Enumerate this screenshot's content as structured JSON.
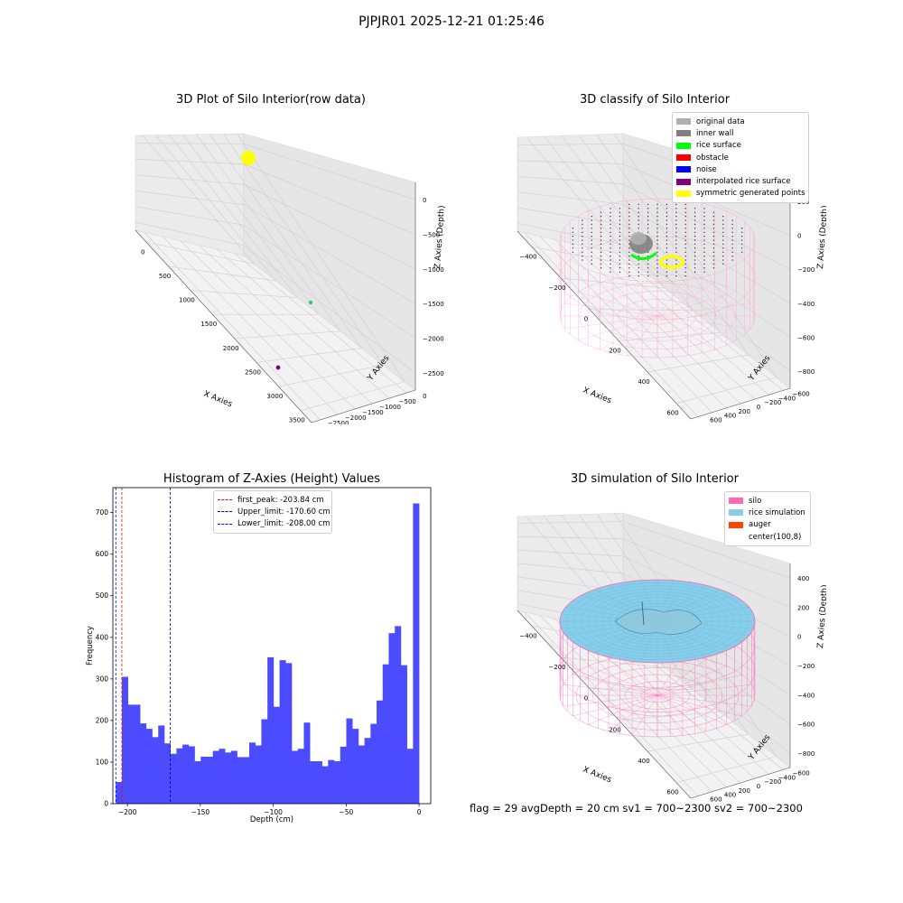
{
  "suptitle": "PJPJR01 2025-12-21 01:25:46",
  "footer": "flag = 29  avgDepth = 20 cm    sv1 = 700~2300  sv2 = 700~2300",
  "panels": {
    "raw": {
      "title": "3D Plot of Silo Interior(row data)",
      "xlabel": "X Axies",
      "ylabel": "Y Axies",
      "zlabel": "Z Axies (Depth)",
      "xticks": [
        "0",
        "500",
        "1000",
        "1500",
        "2000",
        "2500",
        "3000",
        "3500"
      ],
      "yticks": [
        "0",
        "−500",
        "−1000",
        "−1500",
        "−2000",
        "−2500"
      ],
      "zticks": [
        "0",
        "−500",
        "−1000",
        "−1500",
        "−2000",
        "−2500"
      ]
    },
    "classify": {
      "title": "3D classify of Silo Interior",
      "xlabel": "X Axies",
      "ylabel": "Y Axies",
      "zlabel": "Z Axies (Depth)",
      "xticks": [
        "−400",
        "−200",
        "0",
        "200",
        "400",
        "600"
      ],
      "yticks": [
        "−600",
        "−400",
        "−200",
        "0",
        "200",
        "400",
        "600"
      ],
      "zticks": [
        "200",
        "0",
        "−200",
        "−400",
        "−600",
        "−800"
      ],
      "zticks_hidden_top": "00",
      "legend": [
        {
          "label": "original data",
          "color": "#b0b0b0"
        },
        {
          "label": "inner wall",
          "color": "#808080"
        },
        {
          "label": "rice surface",
          "color": "#00ff00"
        },
        {
          "label": "obstacle",
          "color": "#ff0000"
        },
        {
          "label": "noise",
          "color": "#0000ff"
        },
        {
          "label": "interpolated rice surface",
          "color": "#800080"
        },
        {
          "label": "symmetric generated points",
          "color": "#ffff00"
        }
      ]
    },
    "simulation": {
      "title": "3D simulation of Silo Interior",
      "xlabel": "X Axies",
      "ylabel": "Y Axies",
      "zlabel": "Z Axies (Depth)",
      "xticks": [
        "−400",
        "−200",
        "0",
        "200",
        "400",
        "600"
      ],
      "yticks": [
        "−600",
        "−400",
        "−200",
        "0",
        "200",
        "400",
        "600"
      ],
      "zticks": [
        "400",
        "200",
        "0",
        "−200",
        "−400",
        "−600",
        "−800"
      ],
      "legend": [
        {
          "label": "silo",
          "color": "#ff69b4"
        },
        {
          "label": "rice simulation",
          "color": "#87ceeb"
        },
        {
          "label": "auger",
          "color": "#ff4500"
        },
        {
          "label": "center(100,8)",
          "color": ""
        }
      ]
    }
  },
  "chart_data": [
    {
      "type": "scatter",
      "title": "3D Plot of Silo Interior(row data)",
      "xlabel": "X Axies",
      "ylabel": "Y Axies",
      "zlabel": "Z Axies (Depth)",
      "xlim": [
        -250,
        3600
      ],
      "ylim": [
        -2800,
        150
      ],
      "zlim": [
        -2700,
        100
      ],
      "series": [
        {
          "color": "#ffff00",
          "points": "dense cluster near x≈0, y≈0, z≈0"
        },
        {
          "color": "#2ecc71",
          "points": [
            {
              "x": 3000,
              "y": 0,
              "z": -2600
            }
          ]
        },
        {
          "color": "#800080",
          "points": [
            {
              "x": 3000,
              "y": -2600,
              "z": -2600
            }
          ]
        }
      ]
    },
    {
      "type": "histogram",
      "title": "Histogram of Z-Axies (Height) Values",
      "xlabel": "Depth (cm)",
      "ylabel": "Frequency",
      "xlim": [
        -210,
        8
      ],
      "ylim": [
        0,
        760
      ],
      "xticks": [
        -200,
        -150,
        -100,
        -50,
        0
      ],
      "yticks": [
        0,
        100,
        200,
        300,
        400,
        500,
        600,
        700
      ],
      "bin_start": -208,
      "bin_width": 4.16,
      "values": [
        52,
        305,
        238,
        238,
        193,
        180,
        160,
        188,
        145,
        120,
        133,
        142,
        138,
        102,
        113,
        113,
        127,
        132,
        123,
        127,
        112,
        112,
        147,
        140,
        203,
        352,
        233,
        345,
        338,
        127,
        132,
        195,
        102,
        102,
        90,
        105,
        102,
        137,
        205,
        180,
        140,
        158,
        192,
        248,
        335,
        410,
        427,
        333,
        132,
        722
      ],
      "vlines": [
        {
          "label": "first_peak: -203.84 cm",
          "x": -203.84,
          "color": "#ff0000"
        },
        {
          "label": "Upper_limit: -170.60 cm",
          "x": -170.6,
          "color": "#00008b"
        },
        {
          "label": "Lower_limit: -208.00 cm",
          "x": -208.0,
          "color": "#0000ff"
        }
      ],
      "bar_color": "#4b4bff"
    }
  ]
}
